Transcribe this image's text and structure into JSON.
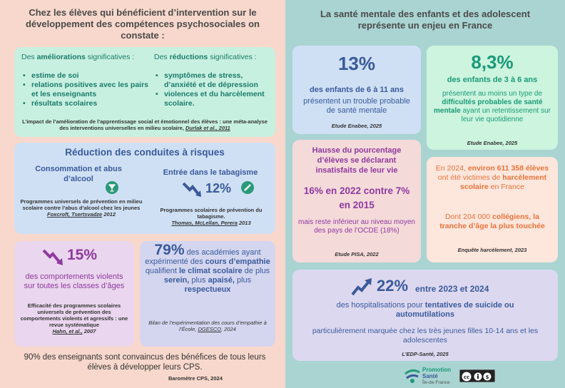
{
  "left": {
    "header": "Chez les élèves qui bénéficient d’intervention sur le développement des compétences psychosociales on constate :",
    "improvements": {
      "title_prefix": "Des ",
      "title_bold": "améliorations",
      "title_suffix": " significatives :",
      "items": [
        "estime de soi",
        "relations positives avec les pairs et les enseignants",
        "résultats scolaires"
      ]
    },
    "reductions": {
      "title_prefix": "Des ",
      "title_bold": "réductions",
      "title_suffix": " significatives :",
      "items": [
        "symptômes de stress, d’anxiété et de dépression",
        "violences et du harcèlement scolaire."
      ]
    },
    "box1_source": "L’impact de l’amélioration de l’apprentissage social et émotionnel des élèves : une méta-analyse des interventions universelles en milieu scolaire,",
    "box1_source_authors": "Durlak et al., 2011",
    "risk": {
      "title": "Réduction des conduites à risques",
      "alcohol_title": "Consommation et abus d’alcool",
      "alcohol_source": "Programmes universels de prévention en milieu scolaire contre l’abus d’alcool chez les jeunes",
      "alcohol_authors": "Foxcroft, Tsertsvadze",
      "alcohol_year": "2012",
      "tobacco_title": "Entrée dans le tabagisme",
      "tobacco_pct": "12%",
      "tobacco_source": "Programmes scolaires de prévention du tabagisme.",
      "tobacco_authors": "Thomas, McLellan, Perera",
      "tobacco_year": "2013"
    },
    "violence": {
      "pct": "15%",
      "text": "des comportements violents sur toutes les classes d’âges",
      "source": "Efficacité des programmes scolaires universels de prévention des comportements violents et agressifs : une revue systématique",
      "authors": "Hahn, et al.,",
      "year": "2007"
    },
    "empathy": {
      "pct": "79%",
      "t1": " des académies ayant expérimenté des ",
      "b1": "cours d’empathie",
      "t2": " qualifient ",
      "b2": "le climat scolaire",
      "t3": " de plus ",
      "b3": "serein,",
      "t4": " plus ",
      "b4": "apaisé,",
      "t5": " plus ",
      "b5": "respectueux",
      "source": "Bilan de l’expérimentation des cours d’empathie à l’École,",
      "authors": "DGESCO",
      "year": ", 2024"
    },
    "teachers_text": "90% des enseignants sont convaincus des bénéfices de tous leurs élèves à développer leurs CPS.",
    "teachers_source": "Baromètre CPS, 2024"
  },
  "right": {
    "header": "La santé mentale des enfants et des adolescent représente un enjeu en France",
    "enabee1": {
      "pct": "13%",
      "line1": "des enfants de 6 à 11 ans",
      "line2": "présentent un trouble probable de santé mentale",
      "source": "Etude Enabee, 2025"
    },
    "enabee2": {
      "pct": "8,3%",
      "line1": "des enfants de 3 à 6 ans",
      "t1": "présentent au moins un type de ",
      "b1": "difficultés probables de santé mentale",
      "t2": " ayant un retentissement sur leur vie quotidienne",
      "source": "Etude Enabee, 2025"
    },
    "pisa": {
      "title": "Hausse du pourcentage d’élèves se déclarant insatisfaits de leur vie",
      "big": "16% en 2022 contre 7% en 2015",
      "text": "mais reste inférieur au niveau moyen des pays de l’OCDE (18%)",
      "source": "Etude PISA, 2022"
    },
    "harcelement": {
      "t1": "En 2024, ",
      "b1": "environ 611 358 élèves",
      "t2": " ont été victimes de ",
      "b2": "harcèlement scolaire",
      "t3": " en France",
      "t4": "Dont 204 000 ",
      "b4": "collégiens, la tranche d’âge la plus touchée",
      "source": "Enquête harcèlement, 2023"
    },
    "edp": {
      "pct": "22%",
      "period": "entre 2023 et 2024",
      "t1": "des hospitalisations pour ",
      "b1": "tentatives de suicide ou automutilations",
      "t2": "particulièrement marquée chez les très jeunes filles 10-14 ans et les adolescentes",
      "source": "L’EDP-Santé, 2025"
    },
    "logo": {
      "l1": "Promotion",
      "l2": "Santé",
      "l3": "Île-de-France"
    },
    "license_text": "cc BY NC"
  },
  "icons": [
    "cocktail-icon",
    "cigarette-icon",
    "down-trend-arrow-icon",
    "up-trend-arrow-icon",
    "cc-license-icon"
  ],
  "colors": {
    "left_bg": "#f8d8cc",
    "right_bg": "#a9d4d2",
    "teal": "#0c7a68",
    "navy": "#3a5a9a",
    "purple": "#8e3a9e",
    "green": "#1a9a78"
  }
}
